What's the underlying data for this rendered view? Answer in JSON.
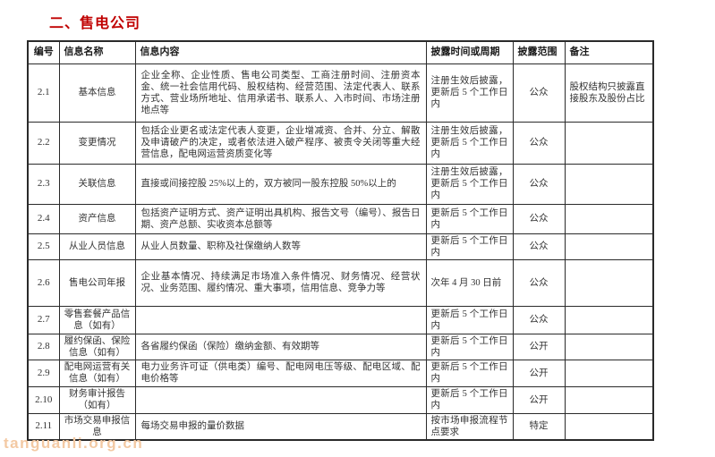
{
  "page": {
    "title": "二、售电公司",
    "watermark": "tanguanli.org.cn",
    "accent_color": "#c00000",
    "watermark_color": "#f3c9a3",
    "border_color": "#2a2a2a"
  },
  "table": {
    "headers": [
      "编号",
      "信息名称",
      "信息内容",
      "披露时间或周期",
      "披露范围",
      "备注"
    ],
    "rows": [
      {
        "id": "2.1",
        "name": "基本信息",
        "content": "企业全称、企业性质、售电公司类型、工商注册时间、注册资本金、统一社会信用代码、股权结构、经营范围、法定代表人、联系方式、营业场所地址、信用承诺书、联系人、入市时间、市场注册地点等",
        "time": "注册生效后披露，更新后 5 个工作日内",
        "scope": "公众",
        "note": "股权结构只披露直接股东及股份占比"
      },
      {
        "id": "2.2",
        "name": "变更情况",
        "content": "包括企业更名或法定代表人变更，企业增减资、合并、分立、解散及申请破产的决定，或者依法进入破产程序、被责令关闭等重大经营信息，配电网运营资质变化等",
        "time": "注册生效后披露，更新后 5 个工作日内",
        "scope": "公众",
        "note": ""
      },
      {
        "id": "2.3",
        "name": "关联信息",
        "content": "直接或间接控股 25%以上的，双方被同一股东控股 50%以上的",
        "time": "注册生效后披露，更新后 5 个工作日内",
        "scope": "公众",
        "note": ""
      },
      {
        "id": "2.4",
        "name": "资产信息",
        "content": "包括资产证明方式、资产证明出具机构、报告文号（编号）、报告日期、资产总额、实收资本总额等",
        "time": "更新后 5 个工作日内",
        "scope": "公众",
        "note": ""
      },
      {
        "id": "2.5",
        "name": "从业人员信息",
        "content": "从业人员数量、职称及社保缴纳人数等",
        "time": "更新后 5 个工作日内",
        "scope": "公众",
        "note": ""
      },
      {
        "id": "2.6",
        "name": "售电公司年报",
        "content": "企业基本情况、持续满足市场准入条件情况、财务情况、经营状况、业务范围、履约情况、重大事项，信用信息、竞争力等",
        "time": "次年 4 月 30 日前",
        "scope": "公众",
        "note": ""
      },
      {
        "id": "2.7",
        "name": "零售套餐产品信息（如有）",
        "content": "",
        "time": "更新后 5 个工作日内",
        "scope": "公众",
        "note": ""
      },
      {
        "id": "2.8",
        "name": "履约保函、保险信息（如有）",
        "content": "各省履约保函（保险）缴纳金额、有效期等",
        "time": "更新后 5 个工作日内",
        "scope": "公开",
        "note": ""
      },
      {
        "id": "2.9",
        "name": "配电网运营有关信息（如有）",
        "content": "电力业务许可证（供电类）编号、配电网电压等级、配电区域、配电价格等",
        "time": "更新后 5 个工作日内",
        "scope": "公开",
        "note": ""
      },
      {
        "id": "2.10",
        "name": "财务审计报告（如有）",
        "content": "",
        "time": "更新后 5 个工作日内",
        "scope": "公开",
        "note": ""
      },
      {
        "id": "2.11",
        "name": "市场交易申报信息",
        "content": "每场交易申报的量价数据",
        "time": "按市场申报流程节点要求",
        "scope": "特定",
        "note": ""
      }
    ]
  }
}
